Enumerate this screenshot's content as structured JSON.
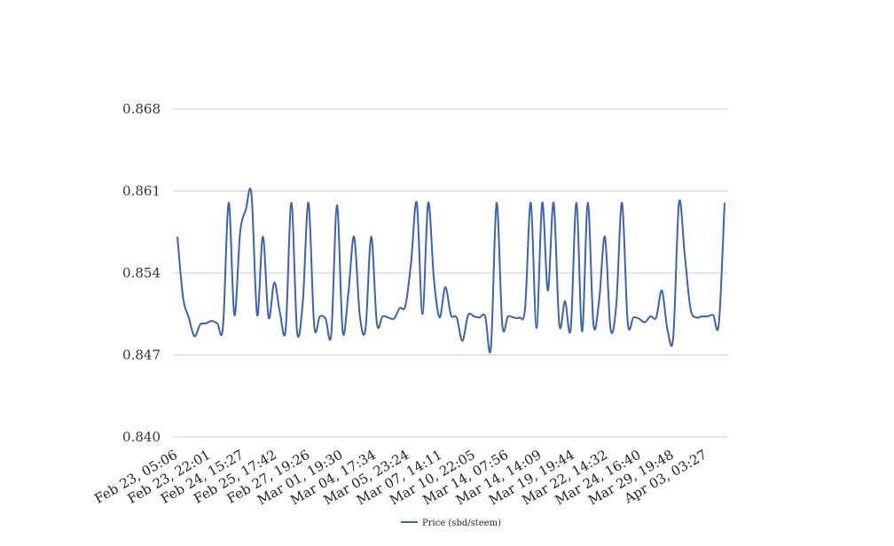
{
  "chart_data": {
    "type": "line",
    "title": "",
    "xlabel": "",
    "ylabel": "",
    "ylim": [
      0.84,
      0.868
    ],
    "grid": true,
    "legend_position": "bottom-center",
    "y_ticks": [
      "0.840",
      "0.847",
      "0.854",
      "0.861",
      "0.868"
    ],
    "x_tick_labels": [
      "Feb 23, 05:06",
      "Feb 23, 22:01",
      "Feb 24, 15:27",
      "Feb 25, 17:42",
      "Feb 27, 19:26",
      "Mar 01, 19:30",
      "Mar 04, 17:34",
      "Mar 05, 23:24",
      "Mar 07, 14:11",
      "Mar 10, 22:05",
      "Mar 14, 07:56",
      "Mar 14, 14:09",
      "Mar 19, 19:44",
      "Mar 22, 14:32",
      "Mar 24, 16:40",
      "Mar 29, 19:48",
      "Apr 03, 03:27"
    ],
    "series": [
      {
        "name": "Price (sbd/steem)",
        "color": "#3a62b5",
        "values": [
          0.8571,
          0.8519,
          0.8502,
          0.8486,
          0.8496,
          0.8497,
          0.8499,
          0.8497,
          0.8494,
          0.86,
          0.8504,
          0.8574,
          0.8594,
          0.8607,
          0.8504,
          0.8571,
          0.8502,
          0.8532,
          0.8506,
          0.8492,
          0.86,
          0.849,
          0.8515,
          0.86,
          0.8495,
          0.8503,
          0.8501,
          0.8488,
          0.8598,
          0.849,
          0.8523,
          0.8571,
          0.8504,
          0.8492,
          0.8571,
          0.8497,
          0.8503,
          0.8502,
          0.8501,
          0.851,
          0.8512,
          0.8549,
          0.86,
          0.8505,
          0.86,
          0.8535,
          0.8502,
          0.8528,
          0.8504,
          0.8502,
          0.8482,
          0.8504,
          0.8503,
          0.8502,
          0.8503,
          0.8476,
          0.86,
          0.8496,
          0.8503,
          0.8502,
          0.8502,
          0.851,
          0.86,
          0.8493,
          0.86,
          0.8525,
          0.86,
          0.8496,
          0.8516,
          0.8492,
          0.86,
          0.849,
          0.86,
          0.8496,
          0.8517,
          0.8571,
          0.8492,
          0.8513,
          0.86,
          0.8498,
          0.8502,
          0.8501,
          0.8498,
          0.8503,
          0.8502,
          0.8525,
          0.8491,
          0.8486,
          0.86,
          0.8556,
          0.851,
          0.8502,
          0.8503,
          0.8503,
          0.8504,
          0.8497,
          0.86
        ]
      }
    ]
  }
}
